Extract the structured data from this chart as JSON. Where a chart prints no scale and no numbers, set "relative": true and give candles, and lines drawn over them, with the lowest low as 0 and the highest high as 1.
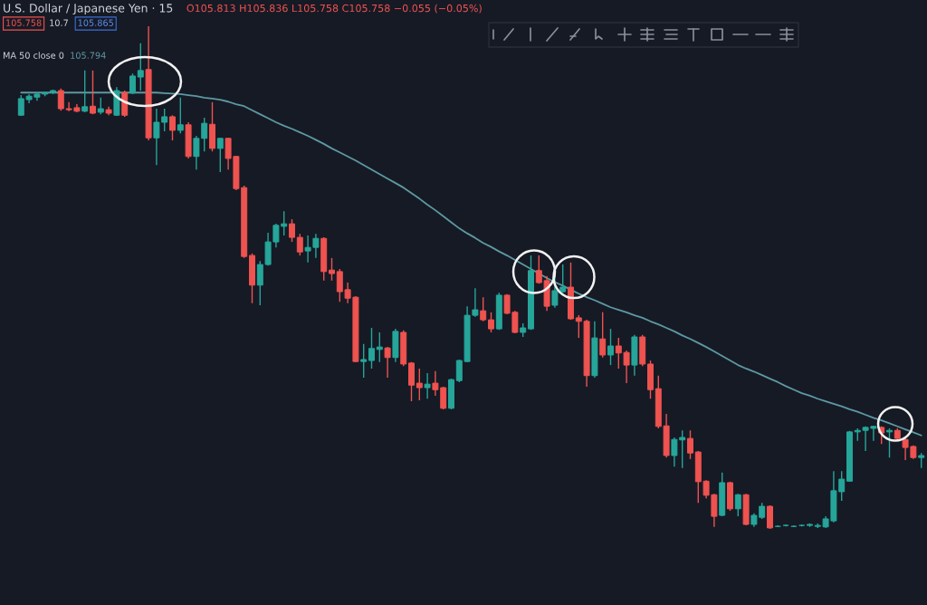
{
  "chart_data": {
    "type": "candlestick",
    "title": "U.S. Dollar / Japanese Yen · 15",
    "annotations": [
      "O105.813 H105.836 L105.758 C105.758 −0.055 (−0.05%)",
      "105.758",
      "10.7",
      "105.865",
      "MA 50 close 0",
      "105.794"
    ],
    "relative": true,
    "categories": [
      null,
      null,
      null,
      null,
      null,
      null,
      null,
      null,
      null,
      null,
      null,
      null,
      null,
      null,
      null,
      null,
      null,
      null,
      null,
      null,
      null,
      null,
      null,
      null,
      null,
      null,
      null,
      null,
      null,
      null,
      null,
      null,
      null,
      null,
      null,
      null,
      null,
      null,
      null,
      null,
      null,
      null,
      null,
      null,
      null,
      null,
      null,
      null,
      null,
      null,
      null,
      null,
      null,
      null,
      null,
      null,
      null,
      null,
      null,
      null,
      null,
      null,
      null,
      null,
      null,
      null,
      null,
      null,
      null,
      null,
      null,
      null,
      null,
      null,
      null,
      null,
      null,
      null,
      null,
      null,
      null,
      null,
      null,
      null,
      null,
      null,
      null,
      null,
      null,
      null,
      null,
      null,
      null,
      null,
      null,
      null,
      null,
      null,
      null,
      null,
      null,
      null,
      null,
      null,
      null,
      null,
      null,
      null,
      null,
      null,
      null,
      null,
      null,
      null
    ],
    "ohlc": [
      [
        0.823,
        0.863,
        0.822,
        0.856
      ],
      [
        0.854,
        0.865,
        0.847,
        0.861
      ],
      [
        0.859,
        0.868,
        0.852,
        0.865
      ],
      [
        0.865,
        0.87,
        0.861,
        0.868
      ],
      [
        0.868,
        0.874,
        0.865,
        0.872
      ],
      [
        0.872,
        0.876,
        0.832,
        0.836
      ],
      [
        0.836,
        0.849,
        0.831,
        0.834
      ],
      [
        0.838,
        0.845,
        0.829,
        0.831
      ],
      [
        0.831,
        0.912,
        0.829,
        0.84
      ],
      [
        0.841,
        0.912,
        0.825,
        0.827
      ],
      [
        0.829,
        0.858,
        0.825,
        0.836
      ],
      [
        0.834,
        0.84,
        0.823,
        0.827
      ],
      [
        0.823,
        0.879,
        0.822,
        0.872
      ],
      [
        0.868,
        0.872,
        0.82,
        0.823
      ],
      [
        0.867,
        0.906,
        0.865,
        0.901
      ],
      [
        0.899,
        0.966,
        0.872,
        0.912
      ],
      [
        0.914,
        1,
        0.773,
        0.778
      ],
      [
        0.778,
        0.836,
        0.724,
        0.809
      ],
      [
        0.809,
        0.836,
        0.791,
        0.82
      ],
      [
        0.82,
        0.823,
        0.773,
        0.793
      ],
      [
        0.793,
        0.858,
        0.787,
        0.804
      ],
      [
        0.804,
        0.809,
        0.737,
        0.741
      ],
      [
        0.741,
        0.782,
        0.715,
        0.777
      ],
      [
        0.777,
        0.818,
        0.751,
        0.807
      ],
      [
        0.805,
        0.849,
        0.751,
        0.757
      ],
      [
        0.757,
        0.778,
        0.71,
        0.777
      ],
      [
        0.777,
        0.778,
        0.715,
        0.737
      ],
      [
        0.741,
        0.742,
        0.674,
        0.677
      ],
      [
        0.679,
        0.683,
        0.539,
        0.542
      ],
      [
        0.544,
        0.548,
        0.449,
        0.485
      ],
      [
        0.485,
        0.533,
        0.445,
        0.526
      ],
      [
        0.526,
        0.589,
        0.524,
        0.571
      ],
      [
        0.571,
        0.607,
        0.56,
        0.604
      ],
      [
        0.602,
        0.632,
        0.584,
        0.607
      ],
      [
        0.607,
        0.616,
        0.571,
        0.58
      ],
      [
        0.58,
        0.587,
        0.544,
        0.551
      ],
      [
        0.553,
        0.584,
        0.53,
        0.56
      ],
      [
        0.56,
        0.587,
        0.539,
        0.578
      ],
      [
        0.578,
        0.58,
        0.494,
        0.512
      ],
      [
        0.515,
        0.539,
        0.494,
        0.508
      ],
      [
        0.512,
        0.517,
        0.452,
        0.472
      ],
      [
        0.476,
        0.49,
        0.449,
        0.459
      ],
      [
        0.461,
        0.463,
        0.332,
        0.333
      ],
      [
        0.333,
        0.368,
        0.301,
        0.337
      ],
      [
        0.335,
        0.4,
        0.319,
        0.359
      ],
      [
        0.357,
        0.391,
        0.332,
        0.362
      ],
      [
        0.36,
        0.362,
        0.301,
        0.341
      ],
      [
        0.341,
        0.398,
        0.332,
        0.393
      ],
      [
        0.391,
        0.395,
        0.324,
        0.328
      ],
      [
        0.33,
        0.332,
        0.254,
        0.286
      ],
      [
        0.29,
        0.319,
        0.256,
        0.281
      ],
      [
        0.281,
        0.31,
        0.259,
        0.288
      ],
      [
        0.29,
        0.314,
        0.265,
        0.277
      ],
      [
        0.281,
        0.283,
        0.238,
        0.24
      ],
      [
        0.24,
        0.299,
        0.238,
        0.297
      ],
      [
        0.295,
        0.337,
        0.292,
        0.335
      ],
      [
        0.333,
        0.443,
        0.332,
        0.425
      ],
      [
        0.425,
        0.479,
        0.422,
        0.436
      ],
      [
        0.434,
        0.461,
        0.413,
        0.416
      ],
      [
        0.416,
        0.431,
        0.391,
        0.398
      ],
      [
        0.398,
        0.47,
        0.396,
        0.465
      ],
      [
        0.465,
        0.467,
        0.427,
        0.429
      ],
      [
        0.431,
        0.434,
        0.389,
        0.391
      ],
      [
        0.391,
        0.409,
        0.382,
        0.4
      ],
      [
        0.398,
        0.544,
        0.396,
        0.514
      ],
      [
        0.514,
        0.544,
        0.488,
        0.49
      ],
      [
        0.494,
        0.503,
        0.434,
        0.443
      ],
      [
        0.445,
        0.526,
        0.44,
        0.474
      ],
      [
        0.472,
        0.526,
        0.47,
        0.481
      ],
      [
        0.481,
        0.53,
        0.416,
        0.418
      ],
      [
        0.42,
        0.425,
        0.38,
        0.413
      ],
      [
        0.413,
        0.416,
        0.283,
        0.305
      ],
      [
        0.305,
        0.413,
        0.301,
        0.38
      ],
      [
        0.378,
        0.431,
        0.341,
        0.346
      ],
      [
        0.346,
        0.398,
        0.326,
        0.364
      ],
      [
        0.364,
        0.38,
        0.319,
        0.35
      ],
      [
        0.351,
        0.355,
        0.29,
        0.326
      ],
      [
        0.326,
        0.386,
        0.305,
        0.382
      ],
      [
        0.382,
        0.386,
        0.324,
        0.328
      ],
      [
        0.328,
        0.335,
        0.259,
        0.277
      ],
      [
        0.279,
        0.305,
        0.2,
        0.204
      ],
      [
        0.205,
        0.229,
        0.142,
        0.146
      ],
      [
        0.146,
        0.182,
        0.124,
        0.178
      ],
      [
        0.177,
        0.196,
        0.121,
        0.182
      ],
      [
        0.18,
        0.196,
        0.139,
        0.151
      ],
      [
        0.153,
        0.155,
        0.052,
        0.094
      ],
      [
        0.095,
        0.097,
        0.061,
        0.067
      ],
      [
        0.068,
        0.07,
        0.004,
        0.025
      ],
      [
        0.027,
        0.112,
        0.025,
        0.092
      ],
      [
        0.092,
        0.094,
        0.036,
        0.04
      ],
      [
        0.04,
        0.07,
        0.025,
        0.068
      ],
      [
        0.068,
        0.07,
        0.007,
        0.009
      ],
      [
        0.009,
        0.031,
        0.004,
        0.027
      ],
      [
        0.023,
        0.052,
        0.02,
        0.045
      ],
      [
        0.045,
        0.047,
        0,
        0.002
      ],
      [
        0.005,
        0.007,
        0.004,
        0.005
      ],
      [
        0.007,
        0.009,
        0.005,
        0.007
      ],
      [
        0.005,
        0.007,
        0.004,
        0.005
      ],
      [
        0.007,
        0.009,
        0.005,
        0.007
      ],
      [
        0.007,
        0.011,
        0.004,
        0.009
      ],
      [
        0.005,
        0.011,
        0.002,
        0.007
      ],
      [
        0.004,
        0.025,
        0.002,
        0.02
      ],
      [
        0.016,
        0.115,
        0.013,
        0.076
      ],
      [
        0.074,
        0.115,
        0.056,
        0.099
      ],
      [
        0.095,
        0.195,
        0.094,
        0.193
      ],
      [
        0.193,
        0.2,
        0.175,
        0.196
      ],
      [
        0.196,
        0.204,
        0.155,
        0.202
      ],
      [
        0.2,
        0.205,
        0.175,
        0.204
      ],
      [
        0.202,
        0.204,
        0.169,
        0.191
      ],
      [
        0.193,
        0.2,
        0.142,
        0.196
      ],
      [
        0.196,
        0.2,
        0.175,
        0.18
      ],
      [
        0.178,
        0.184,
        0.137,
        0.162
      ],
      [
        0.164,
        0.166,
        0.139,
        0.142
      ],
      [
        0.142,
        0.151,
        0.121,
        0.146
      ]
    ],
    "colors": [
      "#26a69a",
      "#26a69a",
      "#26a69a",
      "#26a69a",
      "#26a69a",
      "#ef5350",
      "#ef5350",
      "#ef5350",
      "#26a69a",
      "#ef5350",
      "#26a69a",
      "#ef5350",
      "#26a69a",
      "#ef5350",
      "#26a69a",
      "#26a69a",
      "#ef5350",
      "#26a69a",
      "#26a69a",
      "#ef5350",
      "#26a69a",
      "#ef5350",
      "#26a69a",
      "#26a69a",
      "#ef5350",
      "#26a69a",
      "#ef5350",
      "#ef5350",
      "#ef5350",
      "#ef5350",
      "#26a69a",
      "#26a69a",
      "#26a69a",
      "#26a69a",
      "#ef5350",
      "#ef5350",
      "#26a69a",
      "#26a69a",
      "#ef5350",
      "#ef5350",
      "#ef5350",
      "#ef5350",
      "#ef5350",
      "#26a69a",
      "#26a69a",
      "#26a69a",
      "#ef5350",
      "#26a69a",
      "#ef5350",
      "#ef5350",
      "#ef5350",
      "#26a69a",
      "#ef5350",
      "#ef5350",
      "#26a69a",
      "#26a69a",
      "#26a69a",
      "#26a69a",
      "#ef5350",
      "#ef5350",
      "#26a69a",
      "#ef5350",
      "#ef5350",
      "#26a69a",
      "#26a69a",
      "#ef5350",
      "#ef5350",
      "#26a69a",
      "#26a69a",
      "#ef5350",
      "#ef5350",
      "#ef5350",
      "#26a69a",
      "#ef5350",
      "#26a69a",
      "#ef5350",
      "#ef5350",
      "#26a69a",
      "#ef5350",
      "#ef5350",
      "#ef5350",
      "#ef5350",
      "#26a69a",
      "#26a69a",
      "#ef5350",
      "#ef5350",
      "#ef5350",
      "#ef5350",
      "#26a69a",
      "#ef5350",
      "#26a69a",
      "#ef5350",
      "#26a69a",
      "#26a69a",
      "#ef5350",
      "#26a69a",
      "#26a69a",
      "#26a69a",
      "#26a69a",
      "#26a69a",
      "#26a69a",
      "#26a69a",
      "#26a69a",
      "#26a69a",
      "#26a69a",
      "#26a69a",
      "#26a69a",
      "#26a69a",
      "#ef5350",
      "#26a69a",
      "#ef5350",
      "#ef5350",
      "#ef5350",
      "#26a69a"
    ],
    "series": [
      {
        "type": "line",
        "color": "#5d99a3",
        "values": [
          0.868,
          0.868,
          0.868,
          0.868,
          0.868,
          0.868,
          0.868,
          0.868,
          0.868,
          0.868,
          0.868,
          0.868,
          0.868,
          0.868,
          0.868,
          0.868,
          0.868,
          0.868,
          0.867,
          0.866,
          0.865,
          0.863,
          0.861,
          0.858,
          0.856,
          0.854,
          0.85,
          0.845,
          0.841,
          0.833,
          0.825,
          0.817,
          0.809,
          0.802,
          0.796,
          0.789,
          0.782,
          0.774,
          0.766,
          0.757,
          0.749,
          0.741,
          0.733,
          0.724,
          0.715,
          0.706,
          0.697,
          0.688,
          0.679,
          0.668,
          0.657,
          0.645,
          0.634,
          0.622,
          0.61,
          0.598,
          0.588,
          0.579,
          0.569,
          0.561,
          0.552,
          0.544,
          0.535,
          0.526,
          0.517,
          0.508,
          0.499,
          0.491,
          0.484,
          0.476,
          0.468,
          0.461,
          0.455,
          0.448,
          0.441,
          0.436,
          0.431,
          0.425,
          0.42,
          0.413,
          0.407,
          0.4,
          0.393,
          0.385,
          0.378,
          0.37,
          0.362,
          0.353,
          0.344,
          0.335,
          0.326,
          0.319,
          0.313,
          0.306,
          0.299,
          0.292,
          0.284,
          0.277,
          0.27,
          0.265,
          0.259,
          0.254,
          0.249,
          0.244,
          0.238,
          0.233,
          0.227,
          0.221,
          0.216,
          0.21,
          0.204,
          0.198,
          0.192,
          0.186
        ]
      }
    ]
  }
}
